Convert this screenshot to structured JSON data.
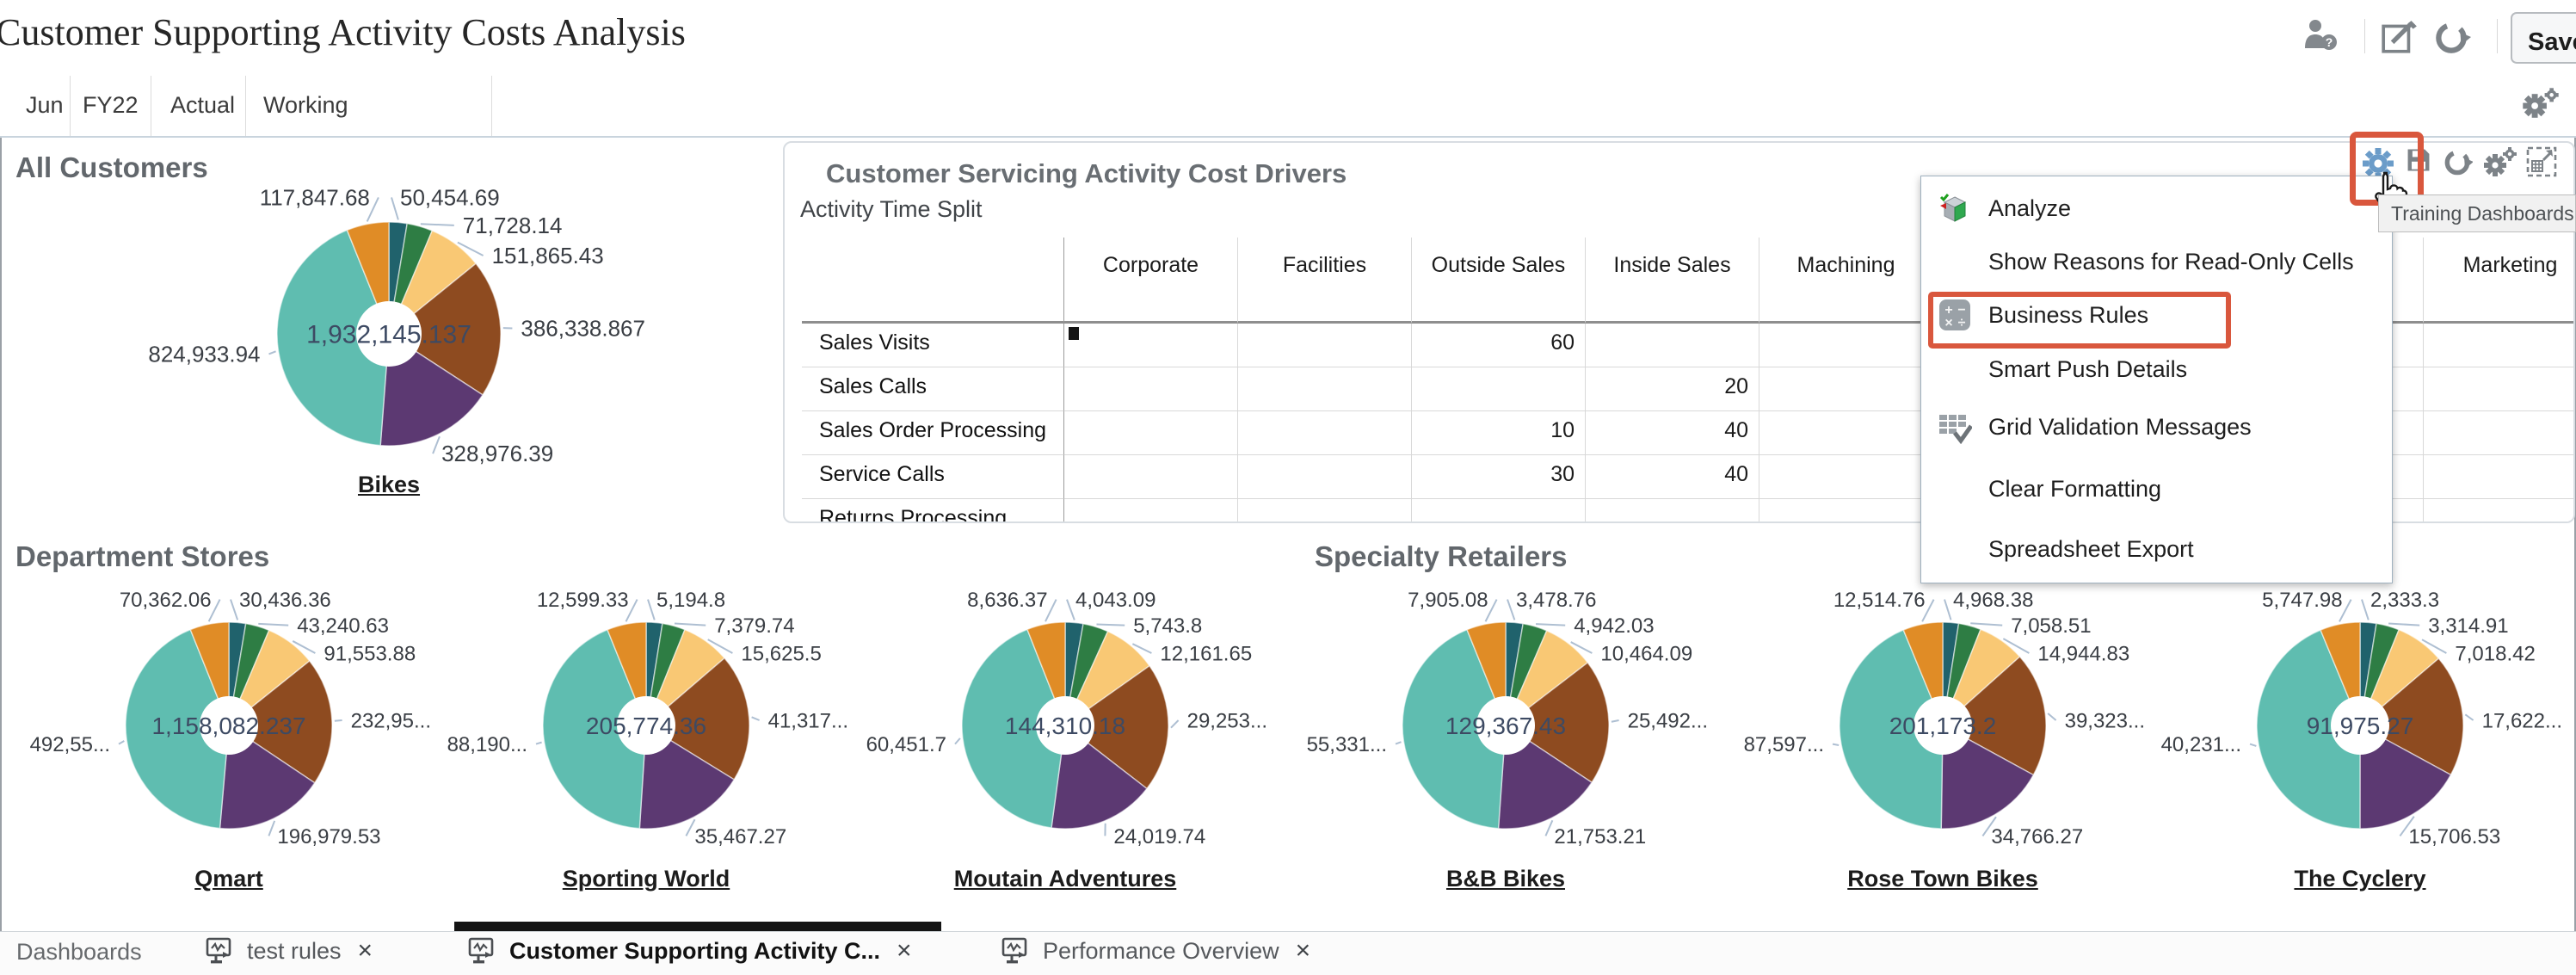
{
  "window": {
    "title": "Customer Supporting Activity Costs Analysis"
  },
  "header": {
    "save_label": "Save",
    "icons": [
      "user-help-icon",
      "edit-icon",
      "refresh-icon"
    ]
  },
  "pov": {
    "members": [
      "Jun",
      "FY22",
      "Actual",
      "Working"
    ]
  },
  "panel": {
    "title": "Customer Servicing Activity Cost Drivers",
    "subtitle": "Activity Time Split",
    "tooltip": "Training Dashboards",
    "toolbar_icons": [
      "gear-icon",
      "save-grid-icon",
      "refresh-icon",
      "gears-icon",
      "expand-icon"
    ]
  },
  "table": {
    "columns": [
      "Corporate",
      "Facilities",
      "Outside Sales",
      "Inside Sales",
      "Machining",
      "",
      "",
      "",
      "Marketing"
    ],
    "rows": [
      {
        "label": "Sales Visits",
        "cells": [
          "",
          "",
          "60",
          "",
          "",
          "",
          "",
          "",
          ""
        ]
      },
      {
        "label": "Sales Calls",
        "cells": [
          "",
          "",
          "",
          "20",
          "",
          "",
          "",
          "",
          ""
        ]
      },
      {
        "label": "Sales Order Processing",
        "cells": [
          "",
          "",
          "10",
          "40",
          "",
          "",
          "",
          "",
          ""
        ]
      },
      {
        "label": "Service Calls",
        "cells": [
          "",
          "",
          "30",
          "40",
          "",
          "",
          "",
          "",
          ""
        ]
      },
      {
        "label": "Returns Processing",
        "cells": [
          "",
          "",
          "",
          "",
          "",
          "",
          "",
          "",
          ""
        ]
      }
    ]
  },
  "menu": {
    "items": [
      {
        "label": "Analyze",
        "icon": "analyze-cube-icon",
        "highlighted": false
      },
      {
        "label": "Show Reasons for Read-Only Cells",
        "icon": "",
        "highlighted": false
      },
      {
        "label": "Business Rules",
        "icon": "calculator-icon",
        "highlighted": true
      },
      {
        "label": "Smart Push Details",
        "icon": "",
        "highlighted": false
      },
      {
        "label": "Grid Validation Messages",
        "icon": "grid-check-icon",
        "highlighted": false
      },
      {
        "label": "Clear Formatting",
        "icon": "",
        "highlighted": false
      },
      {
        "label": "Spreadsheet Export",
        "icon": "",
        "highlighted": false
      }
    ]
  },
  "sections": {
    "all_customers": "All Customers",
    "department_stores": "Department Stores",
    "specialty_retailers": "Specialty Retailers"
  },
  "tabs": {
    "home": "Dashboards",
    "items": [
      {
        "label": "test rules",
        "active": false
      },
      {
        "label": "Customer Supporting Activity C...",
        "active": true
      },
      {
        "label": "Performance Overview",
        "active": false
      }
    ]
  },
  "colors": {
    "highlight_box": "#D9573D",
    "slice_palette": [
      "#20626C",
      "#2E7D44",
      "#F9C874",
      "#8E4B20",
      "#5C3972",
      "#5FBDB0",
      "#E08C26"
    ],
    "leader_line": "#AEBFD2",
    "center_text": "#3D4A63",
    "toolbar_gear_blue": "#6B9CC9",
    "icon_gray": "#7D8388"
  },
  "chart_data": [
    {
      "type": "donut",
      "group": "All Customers",
      "link_label": "Bikes",
      "center_total": "1,932,145.137",
      "slice_labels": [
        "50,454.69",
        "71,728.14",
        "151,865.43",
        "386,338.867",
        "328,976.39",
        "824,933.94",
        "117,847.68"
      ],
      "slice_values": [
        50454.69,
        71728.14,
        151865.43,
        386338.867,
        328976.39,
        824933.94,
        117847.68
      ]
    },
    {
      "type": "donut",
      "group": "Department Stores",
      "link_label": "Qmart",
      "center_total": "1,158,082.237",
      "slice_labels": [
        "30,436.36",
        "43,240.63",
        "91,553.88",
        "232,95...",
        "196,979.53",
        "492,55...",
        "70,362.06"
      ],
      "slice_values": [
        30436.36,
        43240.63,
        91553.88,
        232950,
        196979.53,
        492550,
        70362.06
      ]
    },
    {
      "type": "donut",
      "group": "Department Stores",
      "link_label": "Sporting World",
      "center_total": "205,774.36",
      "slice_labels": [
        "5,194.8",
        "7,379.74",
        "15,625.5",
        "41,317...",
        "35,467.27",
        "88,190...",
        "12,599.33"
      ],
      "slice_values": [
        5194.8,
        7379.74,
        15625.5,
        41317,
        35467.27,
        88190,
        12599.33
      ]
    },
    {
      "type": "donut",
      "group": "Department Stores",
      "link_label": "Moutain Adventures",
      "center_total": "144,310.18",
      "slice_labels": [
        "4,043.09",
        "5,743.8",
        "12,161.65",
        "29,253...",
        "24,019.74",
        "60,451.7",
        "8,636.37"
      ],
      "slice_values": [
        4043.09,
        5743.8,
        12161.65,
        29253,
        24019.74,
        60451.7,
        8636.37
      ]
    },
    {
      "type": "donut",
      "group": "Specialty Retailers",
      "link_label": "B&B Bikes",
      "center_total": "129,367.43",
      "slice_labels": [
        "3,478.76",
        "4,942.03",
        "10,464.09",
        "25,492...",
        "21,753.21",
        "55,331...",
        "7,905.08"
      ],
      "slice_values": [
        3478.76,
        4942.03,
        10464.09,
        25492,
        21753.21,
        55331,
        7905.08
      ]
    },
    {
      "type": "donut",
      "group": "Specialty Retailers",
      "link_label": "Rose Town Bikes",
      "center_total": "201,173.2",
      "slice_labels": [
        "4,968.38",
        "7,058.51",
        "14,944.83",
        "39,323...",
        "34,766.27",
        "87,597...",
        "12,514.76"
      ],
      "slice_values": [
        4968.38,
        7058.51,
        14944.83,
        39323,
        34766.27,
        87597,
        12514.76
      ]
    },
    {
      "type": "donut",
      "group": "Specialty Retailers",
      "link_label": "The Cyclery",
      "center_total": "91,975.27",
      "slice_labels": [
        "2,333.3",
        "3,314.91",
        "7,018.42",
        "17,622...",
        "15,706.53",
        "40,231...",
        "5,747.98"
      ],
      "slice_values": [
        2333.3,
        3314.91,
        7018.42,
        17622,
        15706.53,
        40231,
        5747.98
      ]
    }
  ]
}
